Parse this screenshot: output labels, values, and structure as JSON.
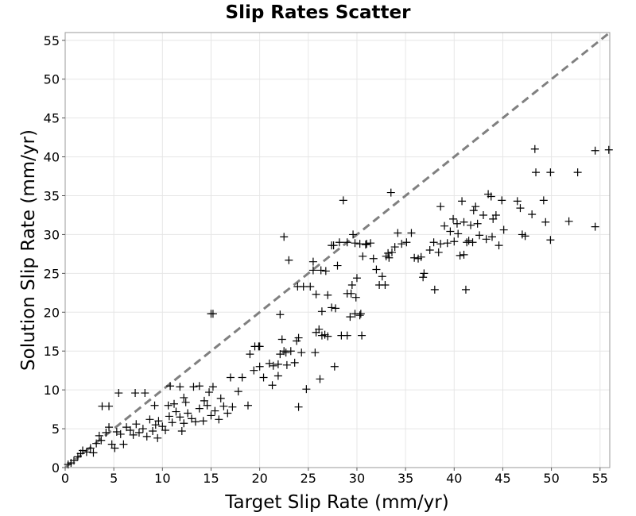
{
  "chart_data": {
    "type": "scatter",
    "title": "Slip Rates Scatter",
    "xlabel": "Target Slip Rate (mm/yr)",
    "ylabel": "Solution Slip Rate (mm/yr)",
    "xlim": [
      0,
      56
    ],
    "ylim": [
      0,
      56
    ],
    "xticks": [
      0,
      5,
      10,
      15,
      20,
      25,
      30,
      35,
      40,
      45,
      50,
      55
    ],
    "yticks": [
      0,
      5,
      10,
      15,
      20,
      25,
      30,
      35,
      40,
      45,
      50,
      55
    ],
    "grid": true,
    "reference_line": {
      "from": [
        0,
        0
      ],
      "to": [
        56,
        56
      ],
      "style": "dashed",
      "color": "#808080"
    },
    "marker": "plus",
    "colors": {
      "points": "#000000",
      "reference": "#808080"
    },
    "points": [
      [
        0.3,
        0.4
      ],
      [
        0.6,
        0.6
      ],
      [
        0.9,
        0.9
      ],
      [
        1.3,
        1.4
      ],
      [
        1.6,
        1.8
      ],
      [
        1.8,
        2.2
      ],
      [
        2.2,
        2.0
      ],
      [
        2.6,
        2.5
      ],
      [
        2.9,
        1.9
      ],
      [
        3.2,
        3.1
      ],
      [
        3.5,
        4.1
      ],
      [
        3.7,
        3.5
      ],
      [
        4.2,
        4.5
      ],
      [
        4.5,
        5.2
      ],
      [
        4.8,
        3.0
      ],
      [
        5.1,
        2.5
      ],
      [
        5.3,
        4.6
      ],
      [
        5.7,
        4.3
      ],
      [
        6.0,
        3.0
      ],
      [
        6.3,
        5.2
      ],
      [
        6.7,
        4.8
      ],
      [
        7.0,
        4.2
      ],
      [
        7.3,
        5.6
      ],
      [
        7.6,
        4.5
      ],
      [
        8.0,
        5.0
      ],
      [
        8.4,
        4.0
      ],
      [
        8.7,
        6.2
      ],
      [
        9.0,
        4.7
      ],
      [
        9.3,
        5.5
      ],
      [
        9.6,
        6.0
      ],
      [
        10.0,
        5.3
      ],
      [
        10.3,
        4.8
      ],
      [
        10.7,
        6.6
      ],
      [
        11.0,
        5.8
      ],
      [
        11.4,
        7.2
      ],
      [
        11.8,
        6.5
      ],
      [
        12.2,
        5.7
      ],
      [
        12.6,
        7.0
      ],
      [
        13.0,
        6.3
      ],
      [
        13.4,
        5.9
      ],
      [
        13.8,
        7.6
      ],
      [
        14.2,
        6.0
      ],
      [
        14.6,
        8.0
      ],
      [
        15.0,
        6.7
      ],
      [
        15.4,
        7.3
      ],
      [
        15.8,
        6.2
      ],
      [
        16.3,
        7.9
      ],
      [
        16.7,
        7.0
      ],
      [
        12.0,
        4.7
      ],
      [
        9.5,
        3.8
      ],
      [
        3.8,
        7.9
      ],
      [
        4.5,
        7.9
      ],
      [
        5.5,
        9.6
      ],
      [
        7.2,
        9.6
      ],
      [
        8.2,
        9.6
      ],
      [
        9.2,
        8.0
      ],
      [
        10.6,
        8.0
      ],
      [
        11.2,
        8.2
      ],
      [
        11.8,
        10.4
      ],
      [
        13.2,
        10.4
      ],
      [
        13.8,
        10.5
      ],
      [
        14.8,
        9.7
      ],
      [
        15.2,
        10.4
      ],
      [
        10.8,
        10.5
      ],
      [
        12.2,
        9.0
      ],
      [
        14.3,
        8.6
      ],
      [
        16.0,
        8.9
      ],
      [
        17.2,
        7.8
      ],
      [
        17.8,
        9.8
      ],
      [
        18.8,
        8.0
      ],
      [
        17.0,
        11.6
      ],
      [
        18.2,
        11.6
      ],
      [
        19.0,
        14.6
      ],
      [
        19.5,
        15.6
      ],
      [
        19.9,
        15.6
      ],
      [
        19.4,
        12.5
      ],
      [
        20.0,
        13.0
      ],
      [
        20.4,
        11.6
      ],
      [
        21.0,
        13.4
      ],
      [
        21.4,
        13.1
      ],
      [
        21.9,
        13.3
      ],
      [
        22.1,
        14.6
      ],
      [
        22.5,
        15.0
      ],
      [
        22.8,
        13.2
      ],
      [
        23.2,
        15.0
      ],
      [
        23.6,
        13.5
      ],
      [
        23.8,
        16.3
      ],
      [
        24.0,
        16.7
      ],
      [
        24.3,
        14.8
      ],
      [
        21.9,
        11.8
      ],
      [
        21.3,
        10.6
      ],
      [
        24.0,
        7.8
      ],
      [
        24.8,
        10.1
      ],
      [
        25.7,
        14.8
      ],
      [
        26.2,
        11.4
      ],
      [
        22.3,
        16.5
      ],
      [
        25.8,
        17.4
      ],
      [
        26.1,
        17.8
      ],
      [
        26.4,
        17.0
      ],
      [
        26.7,
        17.1
      ],
      [
        27.0,
        16.9
      ],
      [
        26.4,
        20.1
      ],
      [
        27.4,
        20.6
      ],
      [
        27.8,
        20.5
      ],
      [
        28.0,
        26.0
      ],
      [
        27.7,
        13.0
      ],
      [
        28.4,
        17.0
      ],
      [
        29.0,
        17.0
      ],
      [
        29.3,
        19.4
      ],
      [
        29.5,
        23.5
      ],
      [
        29.8,
        19.8
      ],
      [
        30.3,
        19.6
      ],
      [
        30.5,
        17.0
      ],
      [
        29.0,
        22.4
      ],
      [
        29.4,
        22.4
      ],
      [
        29.9,
        21.9
      ],
      [
        22.5,
        29.7
      ],
      [
        23.0,
        26.7
      ],
      [
        23.9,
        23.3
      ],
      [
        24.5,
        23.3
      ],
      [
        25.2,
        23.3
      ],
      [
        25.5,
        26.5
      ],
      [
        26.3,
        25.4
      ],
      [
        26.8,
        25.3
      ],
      [
        27.0,
        22.2
      ],
      [
        27.4,
        28.6
      ],
      [
        28.2,
        29.0
      ],
      [
        28.6,
        34.4
      ],
      [
        29.0,
        29.0
      ],
      [
        29.6,
        30.0
      ],
      [
        29.8,
        28.9
      ],
      [
        30.3,
        28.8
      ],
      [
        30.9,
        28.7
      ],
      [
        31.4,
        28.9
      ],
      [
        30.0,
        24.4
      ],
      [
        30.6,
        27.2
      ],
      [
        31.0,
        28.8
      ],
      [
        31.7,
        26.9
      ],
      [
        32.0,
        25.5
      ],
      [
        32.3,
        23.5
      ],
      [
        32.6,
        24.6
      ],
      [
        32.9,
        23.5
      ],
      [
        33.0,
        27.2
      ],
      [
        33.2,
        27.6
      ],
      [
        33.3,
        27.0
      ],
      [
        33.5,
        35.4
      ],
      [
        33.6,
        27.7
      ],
      [
        33.9,
        28.4
      ],
      [
        34.2,
        30.2
      ],
      [
        34.6,
        28.8
      ],
      [
        35.1,
        29.0
      ],
      [
        35.6,
        30.2
      ],
      [
        35.9,
        27.0
      ],
      [
        36.3,
        26.9
      ],
      [
        36.6,
        27.1
      ],
      [
        36.8,
        24.5
      ],
      [
        36.9,
        25.0
      ],
      [
        37.5,
        28.0
      ],
      [
        37.9,
        29.0
      ],
      [
        38.0,
        22.9
      ],
      [
        38.4,
        27.7
      ],
      [
        38.6,
        28.8
      ],
      [
        38.6,
        33.6
      ],
      [
        39.0,
        31.1
      ],
      [
        39.3,
        28.9
      ],
      [
        39.6,
        30.4
      ],
      [
        39.9,
        32.0
      ],
      [
        40.0,
        29.1
      ],
      [
        40.3,
        31.4
      ],
      [
        40.4,
        30.1
      ],
      [
        40.6,
        27.3
      ],
      [
        40.8,
        34.3
      ],
      [
        41.0,
        27.4
      ],
      [
        41.0,
        31.6
      ],
      [
        41.2,
        22.9
      ],
      [
        41.3,
        29.0
      ],
      [
        41.5,
        29.2
      ],
      [
        41.7,
        31.2
      ],
      [
        41.9,
        29.0
      ],
      [
        42.0,
        33.1
      ],
      [
        42.2,
        33.6
      ],
      [
        42.4,
        31.4
      ],
      [
        42.6,
        29.9
      ],
      [
        43.0,
        32.5
      ],
      [
        43.3,
        29.4
      ],
      [
        43.5,
        35.2
      ],
      [
        43.8,
        34.9
      ],
      [
        43.9,
        29.7
      ],
      [
        44.0,
        32.0
      ],
      [
        44.3,
        32.5
      ],
      [
        44.6,
        28.6
      ],
      [
        44.9,
        34.4
      ],
      [
        45.1,
        30.6
      ],
      [
        46.5,
        34.3
      ],
      [
        46.8,
        33.4
      ],
      [
        47.0,
        30.0
      ],
      [
        47.3,
        29.8
      ],
      [
        48.0,
        32.6
      ],
      [
        48.3,
        41.0
      ],
      [
        48.4,
        38.0
      ],
      [
        49.2,
        34.4
      ],
      [
        49.4,
        31.6
      ],
      [
        49.9,
        38.0
      ],
      [
        49.9,
        29.3
      ],
      [
        51.8,
        31.7
      ],
      [
        52.7,
        38.0
      ],
      [
        54.5,
        40.8
      ],
      [
        54.5,
        31.0
      ],
      [
        55.9,
        40.9
      ],
      [
        15.0,
        19.8
      ],
      [
        15.2,
        19.8
      ],
      [
        20.0,
        15.6
      ],
      [
        22.1,
        19.7
      ],
      [
        22.7,
        14.8
      ],
      [
        25.8,
        22.3
      ],
      [
        25.5,
        25.4
      ],
      [
        27.6,
        28.6
      ],
      [
        30.4,
        19.8
      ],
      [
        12.4,
        8.4
      ]
    ]
  }
}
